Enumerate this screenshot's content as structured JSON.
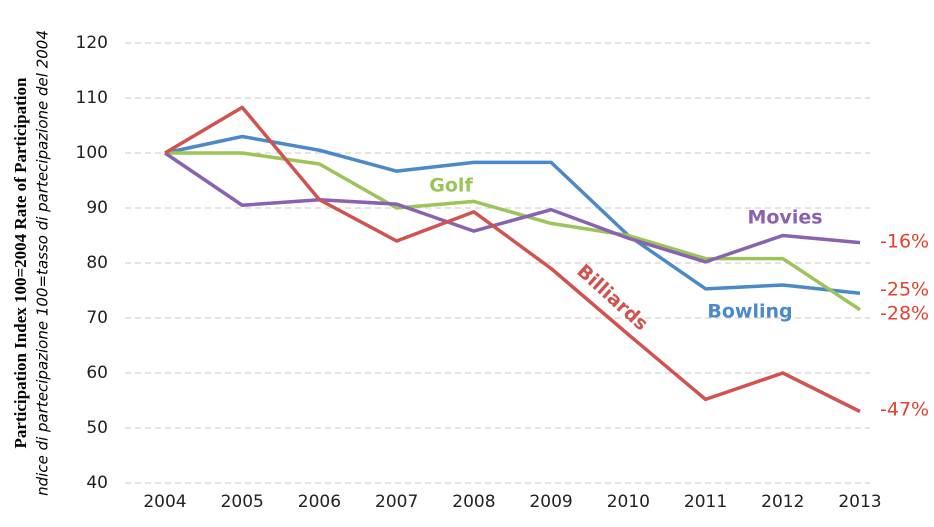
{
  "chart_data": {
    "type": "line",
    "y_axis_title": "Participation Index   100=2004 Rate of Participation",
    "y_axis_subtitle": "ndice di partecipazione   100=tasso di partecipazione del 2004",
    "categories": [
      "2004",
      "2005",
      "2006",
      "2007",
      "2008",
      "2009",
      "2010",
      "2011",
      "2012",
      "2013"
    ],
    "series": [
      {
        "name": "Bowling",
        "color": "#4a8acb",
        "values": [
          100,
          103,
          100.5,
          96.7,
          98.3,
          98.3,
          85,
          75.3,
          76,
          74.5
        ]
      },
      {
        "name": "Golf",
        "color": "#9bc459",
        "values": [
          100,
          100,
          98,
          90,
          91.2,
          87.2,
          85,
          80.8,
          80.8,
          71.5
        ]
      },
      {
        "name": "Movies",
        "color": "#8a62b0",
        "values": [
          100,
          90.5,
          91.5,
          90.7,
          85.8,
          89.7,
          84.5,
          80.2,
          85,
          83.7
        ]
      },
      {
        "name": "Billiards",
        "color": "#d0534f",
        "values": [
          100,
          108.3,
          91.5,
          84,
          89.3,
          79,
          67,
          55.2,
          60,
          53
        ]
      }
    ],
    "annotations": [
      "-16%",
      "-25%",
      "-28%",
      "-47%"
    ],
    "ylim": [
      40,
      120
    ],
    "yticks": [
      40,
      50,
      60,
      70,
      80,
      90,
      100,
      110,
      120
    ],
    "grid": true
  }
}
